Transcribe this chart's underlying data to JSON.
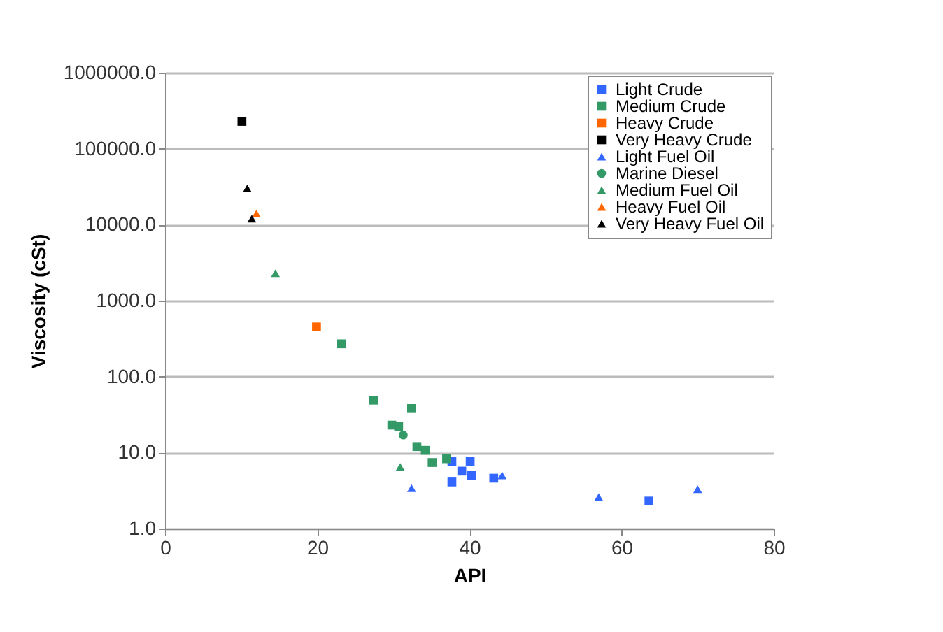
{
  "chart_data": {
    "type": "scatter",
    "xlabel": "API",
    "ylabel": "Viscosity (cSt)",
    "xlim": [
      0,
      80
    ],
    "xticks": [
      0,
      20,
      40,
      60,
      80
    ],
    "ylim": [
      1,
      1000000
    ],
    "yticks": [
      {
        "value": 1,
        "label": "1.0"
      },
      {
        "value": 10,
        "label": "10.0"
      },
      {
        "value": 100,
        "label": "100.0"
      },
      {
        "value": 1000,
        "label": "1000.0"
      },
      {
        "value": 10000,
        "label": "10000.0"
      },
      {
        "value": 100000,
        "label": "100000.0"
      },
      {
        "value": 1000000,
        "label": "1000000.0"
      }
    ],
    "log": "y",
    "grid": "y",
    "legend": "top right",
    "series": [
      {
        "name": "Light Crude",
        "color": "#3366ff",
        "marker": "square",
        "x": [
          37.7,
          40.1,
          39,
          40.3,
          37.7,
          43.2,
          63.6
        ],
        "values": [
          7.7,
          7.7,
          5.7,
          5,
          4.1,
          4.6,
          2.3
        ]
      },
      {
        "name": "Medium Crude",
        "color": "#339966",
        "marker": "square",
        "x": [
          23.2,
          27.4,
          32.4,
          29.8,
          30.7,
          33.1,
          34.2,
          35.1,
          37
        ],
        "values": [
          270,
          49,
          38,
          23,
          22,
          12,
          10.7,
          7.4,
          8.3
        ]
      },
      {
        "name": "Heavy Crude",
        "color": "#ff6600",
        "marker": "square",
        "x": [
          19.9
        ],
        "values": [
          450
        ]
      },
      {
        "name": "Very Heavy Crude",
        "color": "#000000",
        "marker": "square",
        "x": [
          10.1
        ],
        "values": [
          229000
        ]
      },
      {
        "name": "Light Fuel Oil",
        "color": "#3366ff",
        "marker": "triangle",
        "x": [
          32.4,
          44.3,
          57,
          70
        ],
        "values": [
          3.4,
          5,
          2.6,
          3.3
        ]
      },
      {
        "name": "Marine Diesel",
        "color": "#339966",
        "marker": "circle",
        "x": [
          31.3
        ],
        "values": [
          17
        ]
      },
      {
        "name": "Medium Fuel Oil",
        "color": "#339966",
        "marker": "triangle",
        "x": [
          14.5,
          30.9
        ],
        "values": [
          2300,
          6.5
        ]
      },
      {
        "name": "Heavy Fuel Oil",
        "color": "#ff6600",
        "marker": "triangle",
        "x": [
          12
        ],
        "values": [
          14000
        ]
      },
      {
        "name": "Very Heavy Fuel Oil",
        "color": "#000000",
        "marker": "triangle",
        "x": [
          10.8,
          11.4
        ],
        "values": [
          30000,
          12000
        ]
      }
    ]
  }
}
